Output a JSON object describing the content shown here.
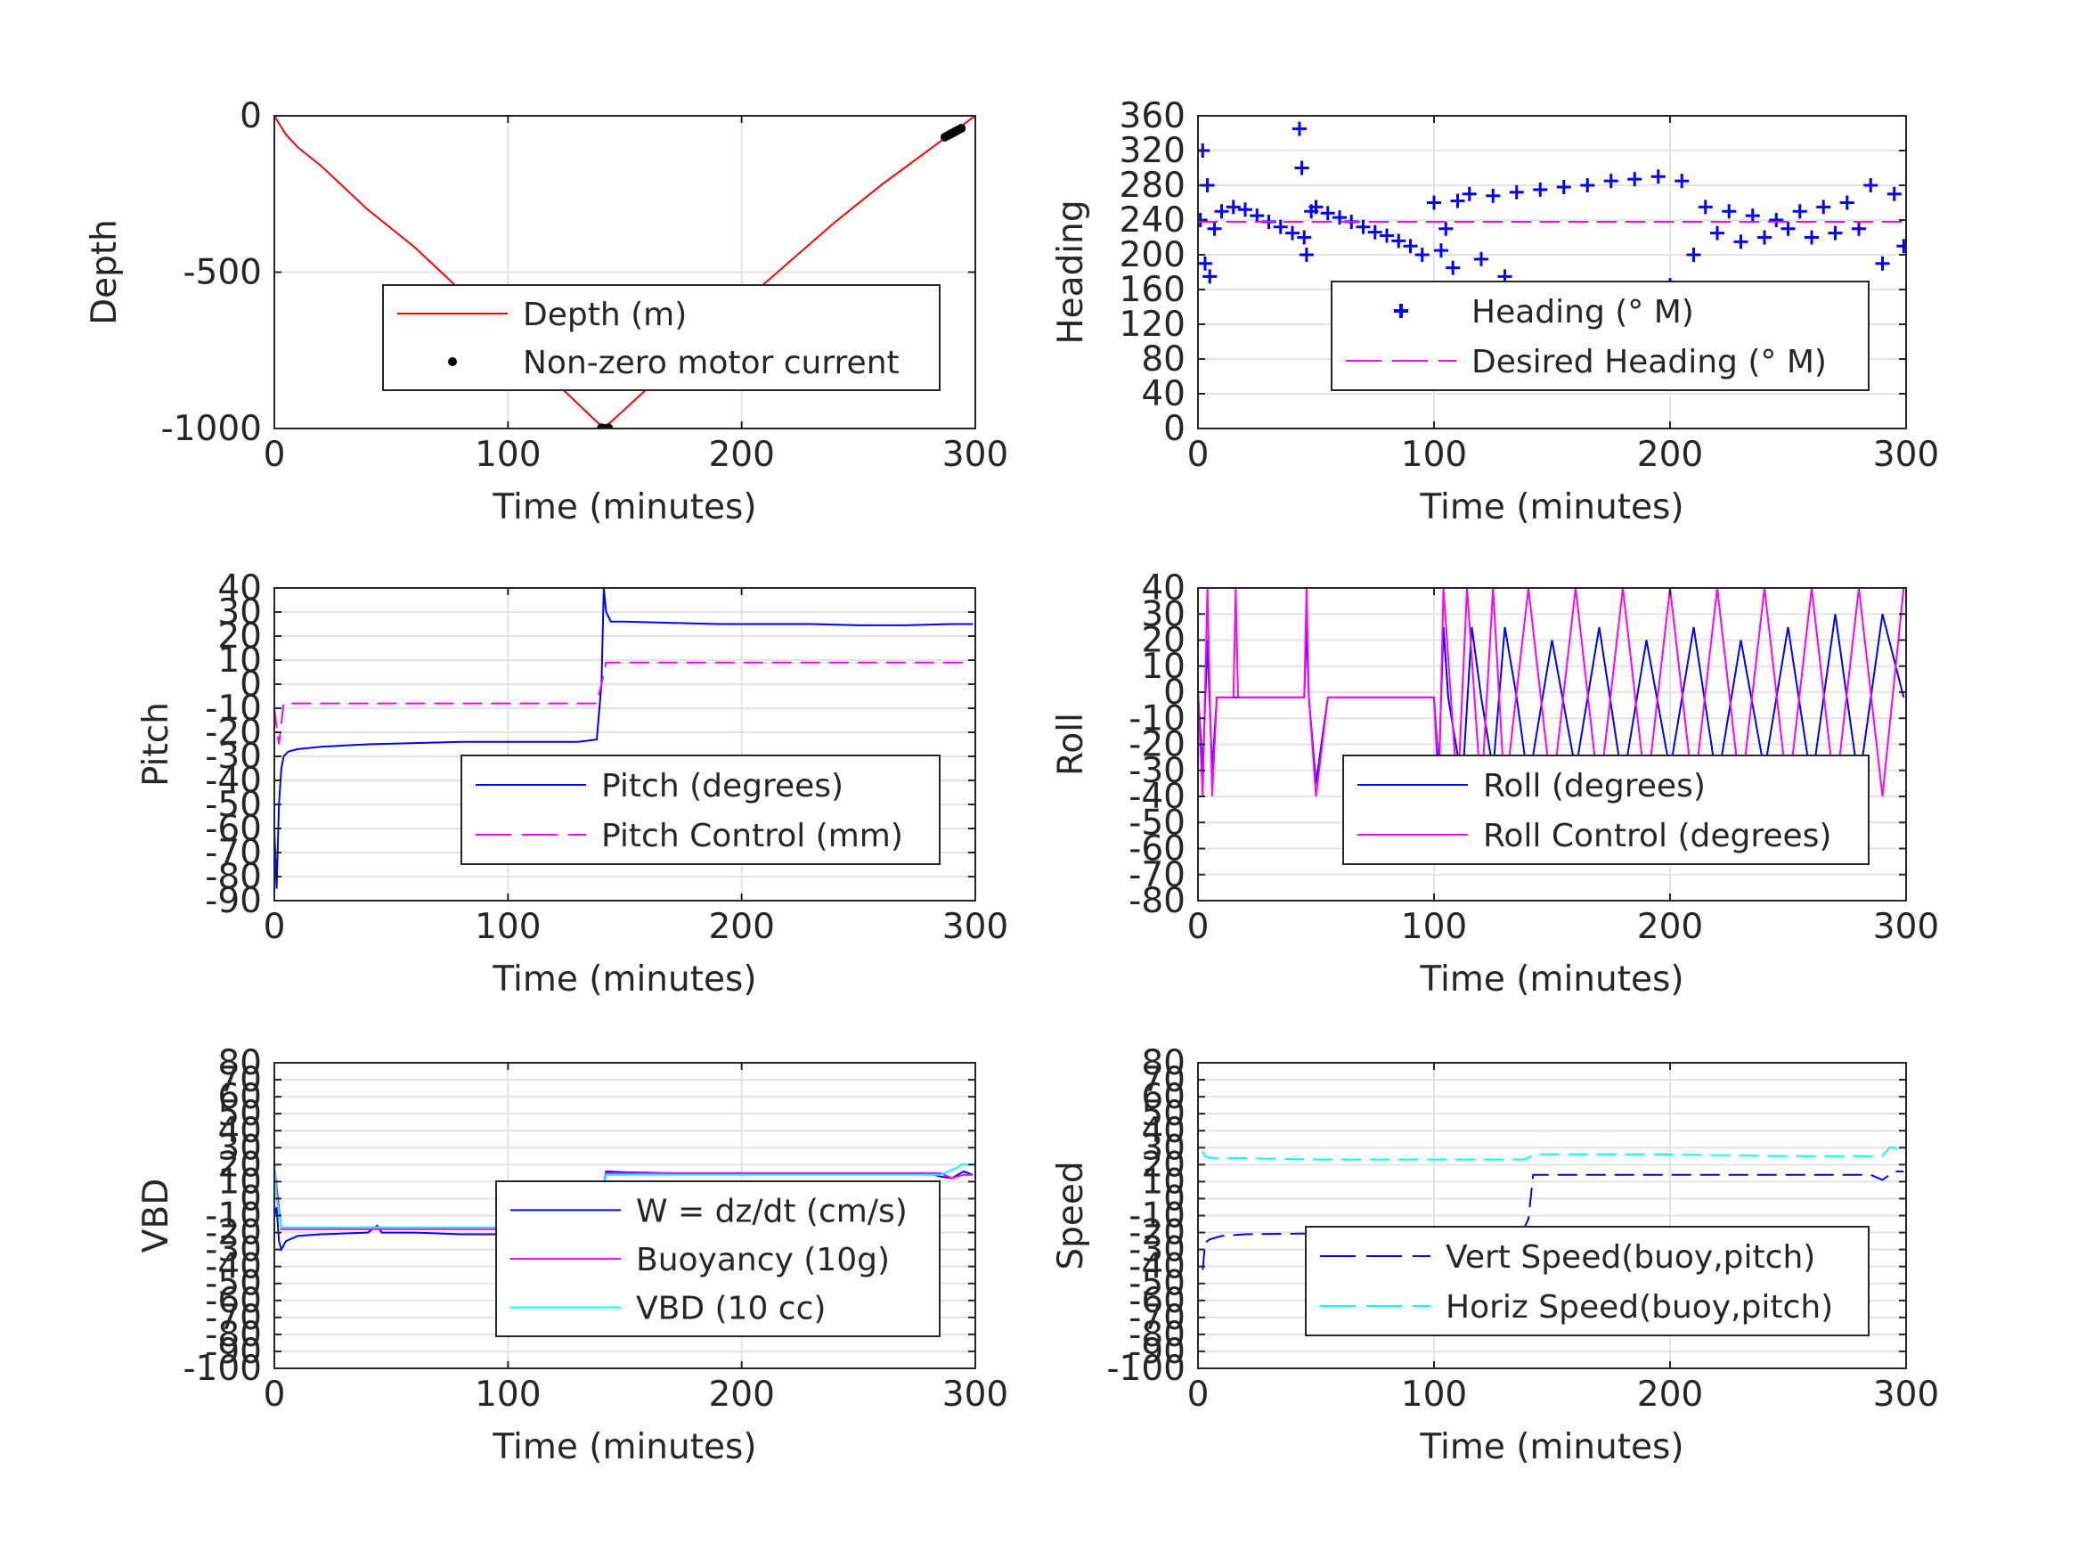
{
  "chart_data": [
    {
      "type": "line",
      "ylabel": "Depth",
      "xlabel": "Time (minutes)",
      "xlim": [
        0,
        300
      ],
      "ylim": [
        -1000,
        0
      ],
      "xticks": [
        0,
        100,
        200,
        300
      ],
      "yticks": [
        0,
        -500,
        -1000
      ],
      "grid": true,
      "legend": "lower-center",
      "series": [
        {
          "name": "Depth (m)",
          "color": "#ff0000",
          "style": "solid",
          "x": [
            0,
            5,
            10,
            20,
            40,
            60,
            80,
            100,
            120,
            141,
            160,
            180,
            200,
            220,
            240,
            260,
            280,
            300
          ],
          "y": [
            0,
            -60,
            -100,
            -160,
            -300,
            -420,
            -560,
            -700,
            -850,
            -1000,
            -870,
            -740,
            -600,
            -470,
            -340,
            -220,
            -110,
            0
          ]
        },
        {
          "name": "Non-zero motor current",
          "color": "#000000",
          "style": "dots",
          "x": [
            140,
            141,
            142,
            143,
            287,
            288,
            289,
            290,
            291,
            292,
            293,
            294
          ],
          "y": [
            -998,
            -1000,
            -1000,
            -998,
            -68,
            -64,
            -60,
            -56,
            -52,
            -48,
            -44,
            -40
          ]
        }
      ]
    },
    {
      "type": "scatter",
      "ylabel": "Heading",
      "xlabel": "Time (minutes)",
      "xlim": [
        0,
        300
      ],
      "ylim": [
        0,
        360
      ],
      "xticks": [
        0,
        100,
        200,
        300
      ],
      "yticks": [
        0,
        40,
        80,
        120,
        160,
        200,
        240,
        280,
        320,
        360
      ],
      "grid": true,
      "legend": "lower-center",
      "series": [
        {
          "name": "Heading (° M)",
          "color": "#0000ff",
          "style": "plus",
          "x": [
            1,
            2,
            3,
            4,
            5,
            7,
            10,
            15,
            20,
            25,
            30,
            35,
            40,
            43,
            44,
            45,
            46,
            48,
            50,
            55,
            60,
            65,
            70,
            75,
            80,
            85,
            90,
            95,
            100,
            103,
            105,
            108,
            110,
            115,
            120,
            125,
            130,
            135,
            140,
            145,
            150,
            155,
            160,
            165,
            170,
            175,
            180,
            185,
            190,
            195,
            200,
            205,
            210,
            215,
            220,
            225,
            230,
            235,
            240,
            245,
            250,
            255,
            260,
            265,
            270,
            275,
            280,
            285,
            290,
            295,
            299
          ],
          "y": [
            240,
            320,
            190,
            280,
            175,
            230,
            250,
            255,
            252,
            245,
            238,
            232,
            225,
            345,
            300,
            220,
            200,
            250,
            255,
            248,
            243,
            238,
            232,
            226,
            222,
            216,
            210,
            200,
            260,
            205,
            230,
            185,
            262,
            270,
            195,
            268,
            175,
            272,
            160,
            275,
            150,
            278,
            145,
            280,
            140,
            285,
            150,
            287,
            155,
            290,
            165,
            285,
            200,
            255,
            225,
            250,
            215,
            245,
            220,
            240,
            230,
            250,
            220,
            255,
            225,
            260,
            230,
            280,
            190,
            270,
            210
          ]
        },
        {
          "name": "Desired Heading (° M)",
          "color": "#ff00ff",
          "style": "dashed",
          "x": [
            0,
            300
          ],
          "y": [
            238,
            238
          ]
        }
      ]
    },
    {
      "type": "line",
      "ylabel": "Pitch",
      "xlabel": "Time (minutes)",
      "xlim": [
        0,
        300
      ],
      "ylim": [
        -90,
        40
      ],
      "xticks": [
        0,
        100,
        200,
        300
      ],
      "yticks": [
        -90,
        -80,
        -70,
        -60,
        -50,
        -40,
        -30,
        -20,
        -10,
        0,
        10,
        20,
        30,
        40
      ],
      "grid": true,
      "legend": "lower-right",
      "series": [
        {
          "name": "Pitch (degrees)",
          "color": "#0000ff",
          "style": "solid",
          "x": [
            0,
            1,
            2,
            3,
            4,
            6,
            10,
            20,
            40,
            60,
            80,
            100,
            120,
            130,
            138,
            140,
            141,
            142,
            144,
            150,
            170,
            190,
            210,
            230,
            250,
            270,
            290,
            299
          ],
          "y": [
            -60,
            -85,
            -50,
            -35,
            -30,
            -28,
            -27,
            -26,
            -25,
            -24.5,
            -24,
            -24,
            -24,
            -24,
            -23,
            0,
            40,
            30,
            26,
            26,
            25.5,
            25,
            25,
            25,
            24.5,
            24.5,
            25,
            25
          ]
        },
        {
          "name": "Pitch Control (mm)",
          "color": "#ff00ff",
          "style": "dashed",
          "x": [
            0,
            2,
            4,
            10,
            50,
            100,
            138,
            140,
            142,
            150,
            200,
            250,
            295
          ],
          "y": [
            -10,
            -25,
            -8,
            -8,
            -8,
            -8,
            -8,
            0,
            9,
            9,
            9,
            9,
            9
          ]
        }
      ]
    },
    {
      "type": "line",
      "ylabel": "Roll",
      "xlabel": "Time (minutes)",
      "xlim": [
        0,
        300
      ],
      "ylim": [
        -80,
        40
      ],
      "xticks": [
        0,
        100,
        200,
        300
      ],
      "yticks": [
        -80,
        -70,
        -60,
        -50,
        -40,
        -30,
        -20,
        -10,
        0,
        10,
        20,
        30,
        40
      ],
      "grid": true,
      "legend": "lower-right",
      "series": [
        {
          "name": "Roll (degrees)",
          "color": "#0000ff",
          "style": "solid",
          "x": [
            0,
            2,
            4,
            6,
            8,
            10,
            15,
            20,
            45,
            46,
            47,
            50,
            55,
            60,
            100,
            102,
            104,
            106,
            112,
            116,
            120,
            125,
            130,
            135,
            140,
            150,
            160,
            170,
            180,
            190,
            200,
            210,
            220,
            230,
            240,
            250,
            260,
            270,
            280,
            290,
            299
          ],
          "y": [
            0,
            -30,
            20,
            -30,
            -2,
            -2,
            -2,
            -2,
            -2,
            25,
            -2,
            -35,
            -2,
            -2,
            -2,
            -30,
            25,
            -2,
            -35,
            25,
            -2,
            -30,
            25,
            -2,
            -35,
            20,
            -30,
            25,
            -35,
            20,
            -30,
            25,
            -35,
            20,
            -30,
            25,
            -35,
            30,
            -35,
            30,
            -2
          ]
        },
        {
          "name": "Roll Control (degrees)",
          "color": "#ff00ff",
          "style": "solid",
          "x": [
            0,
            2,
            4,
            6,
            8,
            15,
            16,
            17,
            45,
            46,
            47,
            50,
            55,
            100,
            102,
            104,
            110,
            114,
            120,
            125,
            130,
            140,
            150,
            160,
            170,
            180,
            190,
            200,
            210,
            220,
            230,
            240,
            250,
            260,
            270,
            280,
            290,
            299
          ],
          "y": [
            0,
            -40,
            40,
            -40,
            -2,
            -2,
            40,
            -2,
            -2,
            40,
            -2,
            -40,
            -2,
            -2,
            -40,
            40,
            -40,
            40,
            -40,
            40,
            -40,
            40,
            -40,
            40,
            -40,
            40,
            -40,
            40,
            -40,
            40,
            -40,
            40,
            -40,
            40,
            -40,
            40,
            -40,
            40
          ]
        }
      ]
    },
    {
      "type": "line",
      "ylabel": "VBD",
      "xlabel": "Time (minutes)",
      "xlim": [
        0,
        300
      ],
      "ylim": [
        -100,
        80
      ],
      "xticks": [
        0,
        100,
        200,
        300
      ],
      "yticks": [
        -100,
        -90,
        -80,
        -70,
        -60,
        -50,
        -40,
        -30,
        -20,
        -10,
        0,
        10,
        20,
        30,
        40,
        50,
        60,
        70,
        80
      ],
      "grid": true,
      "legend": "lower-right",
      "series": [
        {
          "name": "W = dz/dt (cm/s)",
          "color": "#0000ff",
          "style": "solid",
          "x": [
            0,
            1,
            2,
            3,
            5,
            10,
            20,
            40,
            44,
            46,
            60,
            80,
            100,
            120,
            138,
            140,
            142,
            150,
            170,
            200,
            230,
            260,
            280,
            285,
            290,
            295,
            299
          ],
          "y": [
            -10,
            -5,
            -25,
            -30,
            -25,
            -22,
            -21,
            -20,
            -16,
            -20,
            -20,
            -21,
            -21,
            -21,
            -20,
            0,
            16,
            15.5,
            15,
            15,
            15,
            15,
            15,
            13,
            12,
            16,
            14
          ]
        },
        {
          "name": "Buoyancy (10g)",
          "color": "#ff00ff",
          "style": "solid",
          "x": [
            0,
            2,
            3,
            5,
            50,
            100,
            138,
            140,
            142,
            200,
            250,
            285,
            290,
            295,
            299
          ],
          "y": [
            20,
            -5,
            -18,
            -18,
            -18,
            -18,
            -18,
            0,
            15,
            15,
            15,
            15,
            12,
            14,
            14
          ]
        },
        {
          "name": "VBD (10 cc)",
          "color": "#00ffff",
          "style": "solid",
          "x": [
            0,
            1,
            3,
            5,
            50,
            100,
            138,
            140,
            142,
            200,
            250,
            285,
            292,
            294,
            299
          ],
          "y": [
            22,
            0,
            -17,
            -17,
            -17,
            -17,
            -17,
            0,
            14,
            14,
            14,
            14,
            18,
            20,
            20
          ]
        }
      ]
    },
    {
      "type": "line",
      "ylabel": "Speed",
      "xlabel": "Time (minutes)",
      "xlim": [
        0,
        300
      ],
      "ylim": [
        -100,
        80
      ],
      "xticks": [
        0,
        100,
        200,
        300
      ],
      "yticks": [
        -100,
        -90,
        -80,
        -70,
        -60,
        -50,
        -40,
        -30,
        -20,
        -10,
        0,
        10,
        20,
        30,
        40,
        50,
        60,
        70,
        80
      ],
      "grid": true,
      "legend": "lower-right",
      "series": [
        {
          "name": "Vert Speed(buoy,pitch)",
          "color": "#0000ff",
          "style": "dashed",
          "x": [
            2,
            3,
            5,
            10,
            20,
            50,
            100,
            138,
            140,
            142,
            150,
            200,
            250,
            285,
            290,
            295,
            299
          ],
          "y": [
            -42,
            -26,
            -24,
            -22,
            -21,
            -20.5,
            -20,
            -18,
            -12,
            14,
            14,
            14,
            14,
            14,
            11,
            16,
            16
          ]
        },
        {
          "name": "Horiz Speed(buoy,pitch)",
          "color": "#00ffff",
          "style": "dashed",
          "x": [
            2,
            3,
            5,
            10,
            50,
            100,
            138,
            140,
            142,
            150,
            200,
            250,
            285,
            290,
            293,
            295,
            299
          ],
          "y": [
            28,
            25,
            24,
            24,
            23,
            23,
            23,
            24,
            26,
            26,
            26,
            25,
            25,
            25,
            30,
            30,
            28
          ]
        }
      ]
    }
  ]
}
